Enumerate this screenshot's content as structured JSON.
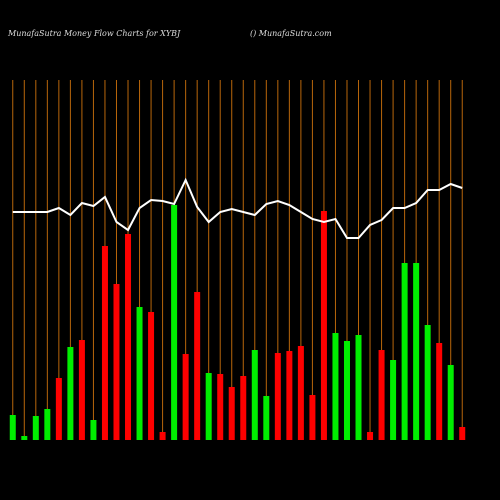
{
  "chart_data": {
    "type": "bar",
    "title": "MunafaSutra  Money Flow  Charts for XYBJ",
    "subtitle": "() MunafaSutra.com",
    "categories": [
      null,
      null,
      null,
      null,
      null,
      null,
      null,
      null,
      null,
      null,
      null,
      null,
      null,
      null,
      null,
      null,
      null,
      null,
      null,
      null,
      null,
      null,
      null,
      null,
      null,
      null,
      null,
      null,
      null,
      null,
      null,
      null,
      null,
      null,
      null,
      null,
      null,
      null,
      null,
      null
    ],
    "values": [
      25,
      4,
      24,
      31,
      62,
      93,
      100,
      20,
      194,
      156,
      206,
      133,
      128,
      8,
      235,
      86,
      148,
      67,
      66,
      53,
      64,
      90,
      44,
      87,
      89,
      94,
      45,
      229,
      107,
      99,
      105,
      8,
      90,
      80,
      177,
      177,
      115,
      97,
      75,
      13
    ],
    "colors": [
      "#00ee00",
      "#00ee00",
      "#00ee00",
      "#00ee00",
      "#ff0000",
      "#00ee00",
      "#ff0000",
      "#00ee00",
      "#ff0000",
      "#ff0000",
      "#ff0000",
      "#00ee00",
      "#ff0000",
      "#ff0000",
      "#00ee00",
      "#ff0000",
      "#ff0000",
      "#00ee00",
      "#ff0000",
      "#ff0000",
      "#ff0000",
      "#00ee00",
      "#00ee00",
      "#ff0000",
      "#ff0000",
      "#ff0000",
      "#ff0000",
      "#ff0000",
      "#00ee00",
      "#00ee00",
      "#00ee00",
      "#ff0000",
      "#ff0000",
      "#00ee00",
      "#00ee00",
      "#00ee00",
      "#00ee00",
      "#ff0000",
      "#00ee00",
      "#ff0000"
    ],
    "line": {
      "color": "#ffffff",
      "values": [
        228,
        228,
        228,
        228,
        232,
        225,
        237,
        234,
        243,
        218,
        210,
        232,
        240,
        239,
        236,
        260,
        233,
        218,
        228,
        231,
        228,
        225,
        236,
        239,
        235,
        228,
        221,
        218,
        221,
        202,
        202,
        215,
        220,
        232,
        232,
        237,
        250,
        250,
        256,
        252
      ]
    },
    "gridline_color": "#b8660b",
    "ylim": [
      0,
      360
    ]
  }
}
